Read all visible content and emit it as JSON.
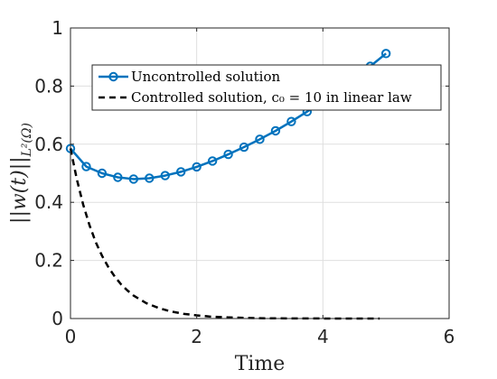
{
  "chart_data": {
    "type": "line",
    "xlabel": "Time",
    "ylabel": "||w(t)||",
    "ylabel_subscript": "L²(Ω)",
    "xlim": [
      0,
      6
    ],
    "ylim": [
      0,
      1
    ],
    "xticks": [
      0,
      2,
      4,
      6
    ],
    "yticks": [
      0,
      0.2,
      0.4,
      0.6,
      0.8,
      1
    ],
    "xtick_labels": [
      "0",
      "2",
      "4",
      "6"
    ],
    "ytick_labels": [
      "0",
      "0.2",
      "0.4",
      "0.6",
      "0.8",
      "1"
    ],
    "grid": true,
    "legend_position": "top",
    "series": [
      {
        "name": "Uncontrolled solution",
        "color": "#0072bd",
        "line_style": "solid",
        "marker": "circle",
        "x": [
          0,
          0.25,
          0.5,
          0.75,
          1.0,
          1.25,
          1.5,
          1.75,
          2.0,
          2.25,
          2.5,
          2.75,
          3.0,
          3.25,
          3.5,
          3.75,
          4.0,
          4.25,
          4.5,
          4.75,
          5.0
        ],
        "y": [
          0.585,
          0.523,
          0.5,
          0.486,
          0.48,
          0.483,
          0.492,
          0.505,
          0.522,
          0.542,
          0.565,
          0.59,
          0.617,
          0.646,
          0.678,
          0.712,
          0.748,
          0.786,
          0.826,
          0.868,
          0.912
        ]
      },
      {
        "name": "Controlled solution, c₀ = 10 in linear law",
        "color": "#000000",
        "line_style": "dashed",
        "marker": "none",
        "x": [
          0,
          0.1,
          0.2,
          0.3,
          0.4,
          0.5,
          0.6,
          0.7,
          0.8,
          0.9,
          1.0,
          1.2,
          1.4,
          1.6,
          1.8,
          2.0,
          2.2,
          2.5,
          2.8,
          3.0,
          3.5,
          4.0,
          4.5,
          4.9
        ],
        "y": [
          0.585,
          0.48,
          0.393,
          0.322,
          0.263,
          0.216,
          0.177,
          0.145,
          0.118,
          0.097,
          0.079,
          0.053,
          0.036,
          0.024,
          0.016,
          0.011,
          0.007,
          0.004,
          0.002,
          0.001,
          0.0005,
          0.0002,
          0.0001,
          0.0001
        ]
      }
    ]
  }
}
